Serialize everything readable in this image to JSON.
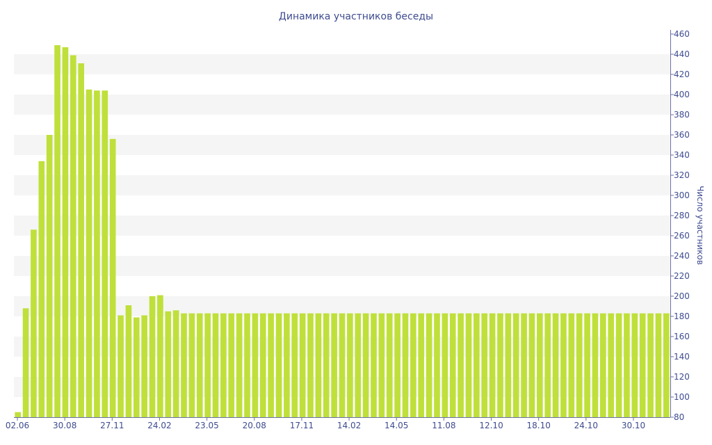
{
  "chart_data": {
    "type": "bar",
    "title": "Динамика участников беседы",
    "xlabel": "",
    "ylabel": "Число участников",
    "ylim": [
      80,
      460
    ],
    "yticks": [
      80,
      100,
      120,
      140,
      160,
      180,
      200,
      220,
      240,
      260,
      280,
      300,
      320,
      340,
      360,
      380,
      400,
      420,
      440,
      460
    ],
    "xtick_labels": [
      "02.06",
      "30.08",
      "27.11",
      "24.02",
      "23.05",
      "20.08",
      "17.11",
      "14.02",
      "14.05",
      "11.08",
      "12.10",
      "18.10",
      "24.10",
      "30.10"
    ],
    "grid": "horizontal alternating bands",
    "bar_color": "#bfe03a",
    "band_color": "#f5f5f5",
    "text_color": "#3e4b8f",
    "values": [
      85,
      188,
      266,
      334,
      360,
      449,
      447,
      439,
      431,
      405,
      404,
      404,
      356,
      181,
      191,
      179,
      181,
      200,
      201,
      185,
      186,
      183,
      183,
      183,
      183,
      183,
      183,
      183,
      183,
      183,
      183,
      183,
      183,
      183,
      183,
      183,
      183,
      183,
      183,
      183,
      183,
      183,
      183,
      183,
      183,
      183,
      183,
      183,
      183,
      183,
      183,
      183,
      183,
      183,
      183,
      183,
      183,
      183,
      183,
      183,
      183,
      183,
      183,
      183,
      183,
      183,
      183,
      183,
      183,
      183,
      183,
      183,
      183,
      183,
      183,
      183,
      183,
      183,
      183,
      183,
      183,
      183,
      183
    ]
  }
}
